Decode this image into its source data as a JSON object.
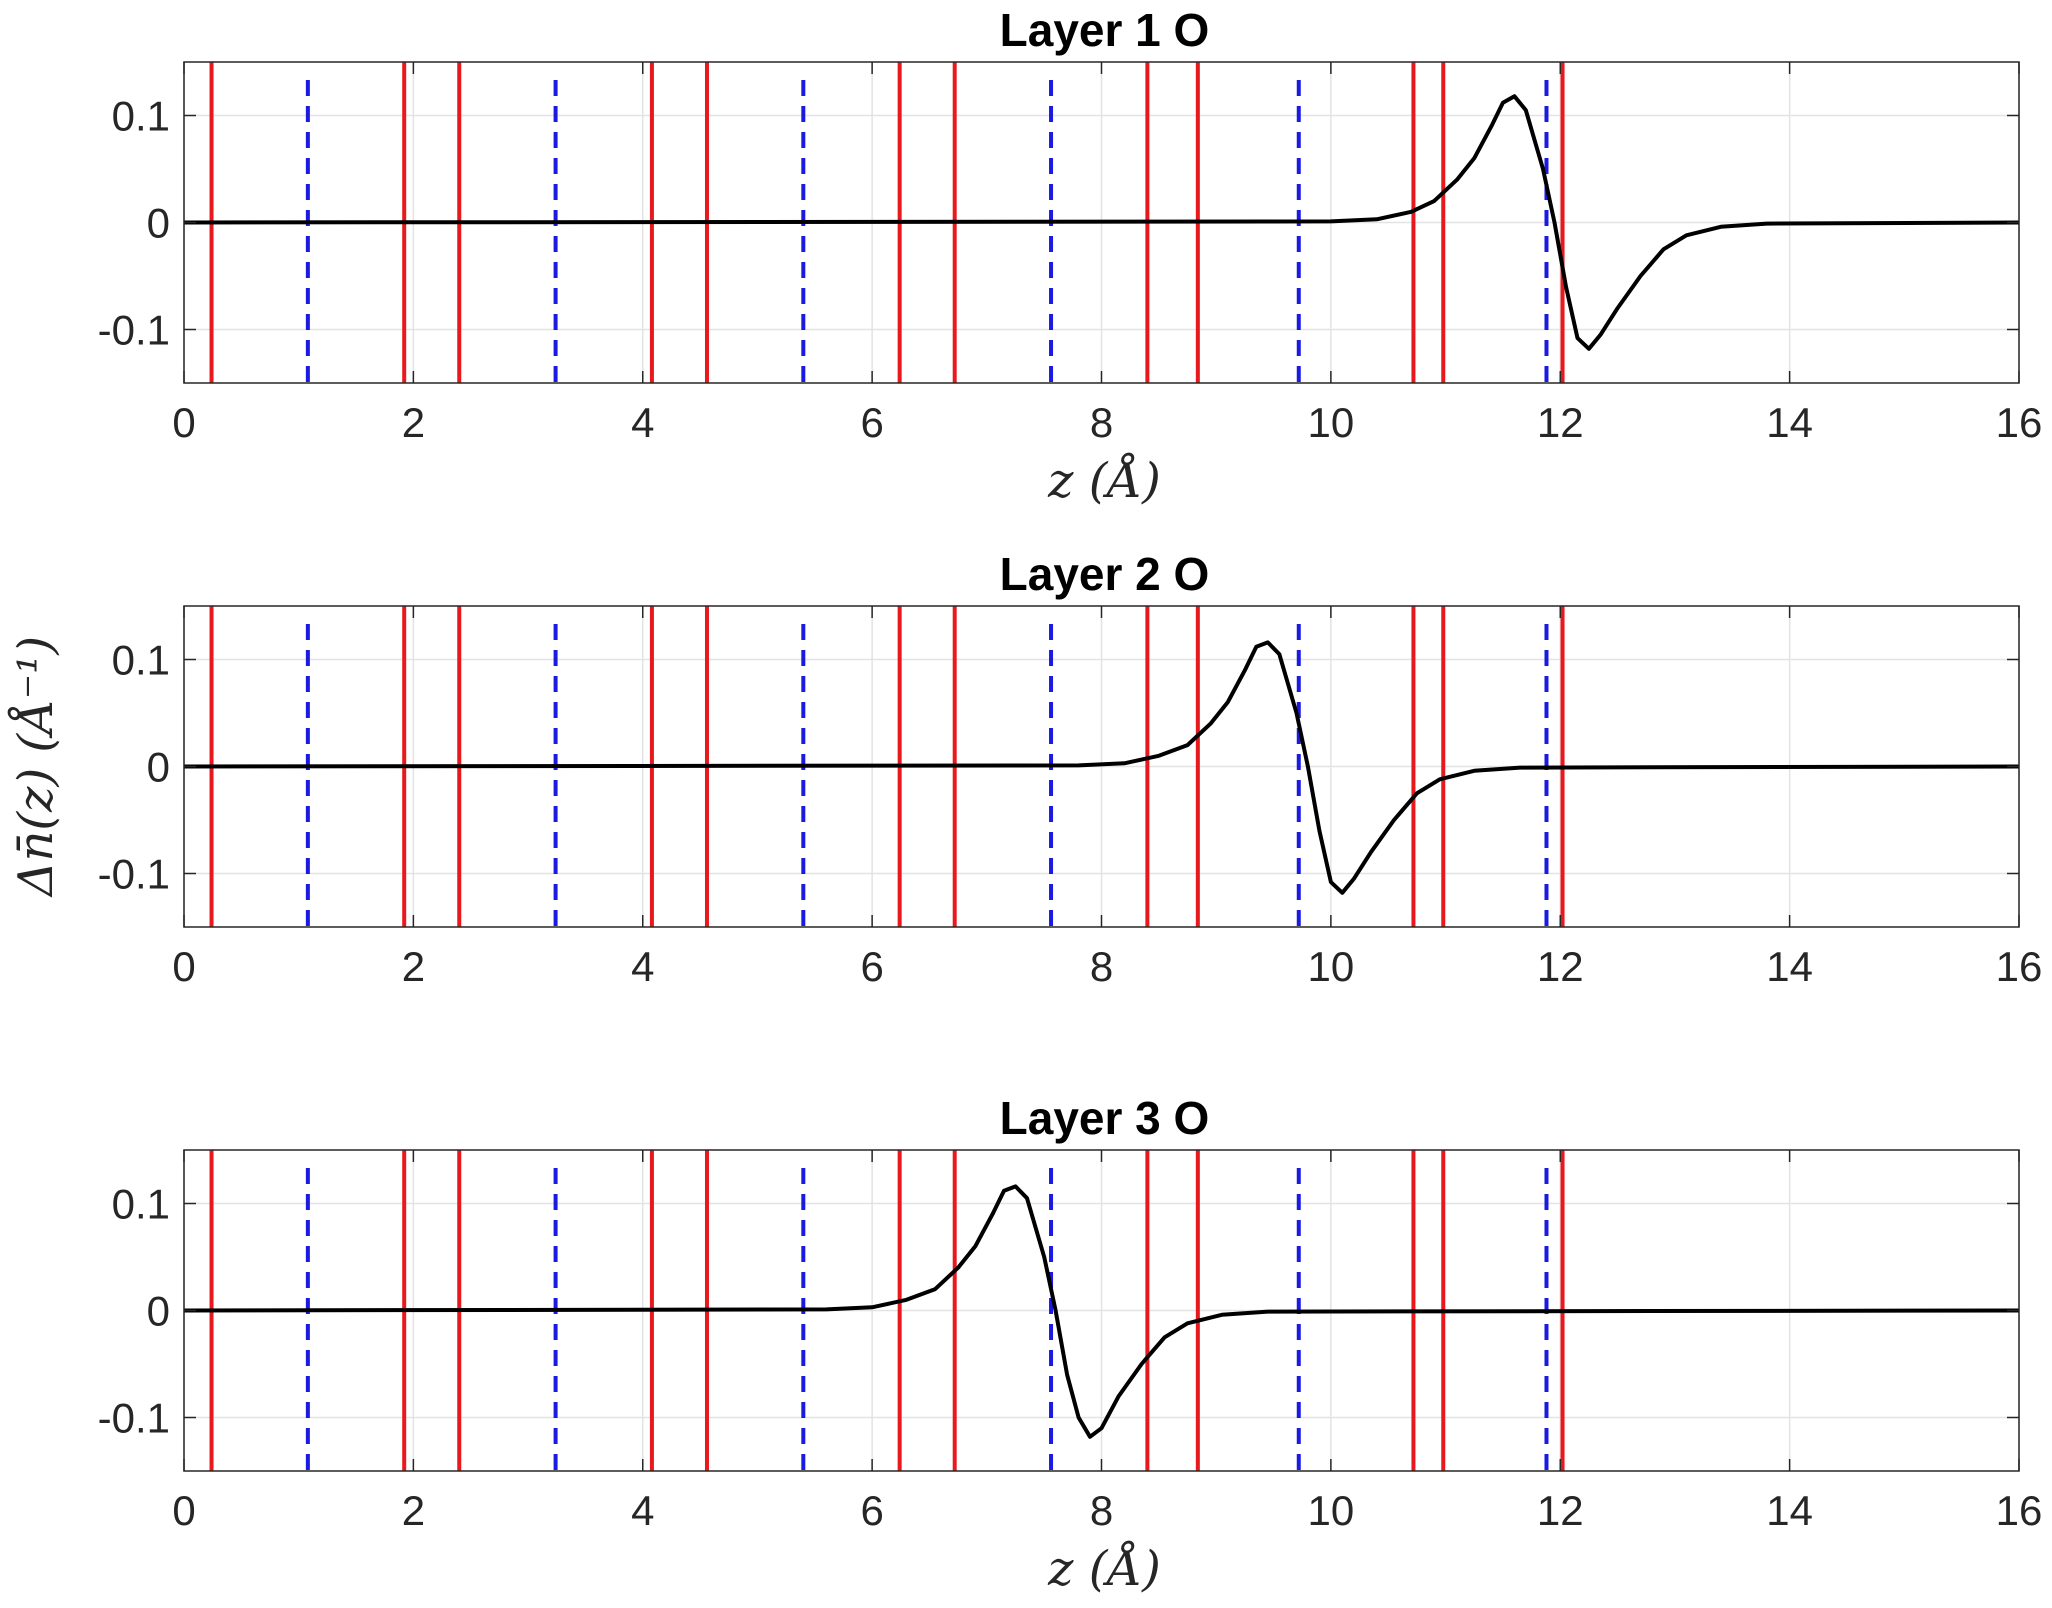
{
  "figure": {
    "ylabel": "Δn̄(z) (Å⁻¹)",
    "colors": {
      "solid_line": "#e8191c",
      "dashed_line": "#1a1ae0",
      "curve": "#000000"
    }
  },
  "chart_data": [
    {
      "type": "line",
      "title": "Layer 1 O",
      "xlabel": "z (Å)",
      "xlim": [
        0,
        16
      ],
      "ylim": [
        -0.15,
        0.15
      ],
      "xticks": [
        "0",
        "2",
        "4",
        "6",
        "8",
        "10",
        "12",
        "14",
        "16"
      ],
      "yticks": [
        "-0.1",
        "0",
        "0.1"
      ],
      "grid": true,
      "solid_lines_x": [
        0.24,
        1.92,
        2.4,
        4.08,
        4.56,
        6.24,
        6.72,
        8.4,
        8.84,
        10.72,
        10.98,
        12.02
      ],
      "dashed_lines_x": [
        1.08,
        3.24,
        5.4,
        7.56,
        9.72,
        11.88
      ],
      "series": [
        {
          "x": [
            0,
            10.0,
            10.4,
            10.7,
            10.9,
            11.1,
            11.25,
            11.4,
            11.5,
            11.6,
            11.7,
            11.85,
            11.95,
            12.05,
            12.15,
            12.25,
            12.35,
            12.5,
            12.7,
            12.9,
            13.1,
            13.4,
            13.8,
            16
          ],
          "y": [
            0,
            0.001,
            0.003,
            0.01,
            0.02,
            0.04,
            0.06,
            0.09,
            0.112,
            0.118,
            0.105,
            0.05,
            0.0,
            -0.06,
            -0.108,
            -0.118,
            -0.105,
            -0.08,
            -0.05,
            -0.025,
            -0.012,
            -0.004,
            -0.001,
            0
          ]
        }
      ]
    },
    {
      "type": "line",
      "title": "Layer 2 O",
      "xlabel": "",
      "xlim": [
        0,
        16
      ],
      "ylim": [
        -0.15,
        0.15
      ],
      "xticks": [
        "0",
        "2",
        "4",
        "6",
        "8",
        "10",
        "12",
        "14",
        "16"
      ],
      "yticks": [
        "-0.1",
        "0",
        "0.1"
      ],
      "grid": true,
      "solid_lines_x": [
        0.24,
        1.92,
        2.4,
        4.08,
        4.56,
        6.24,
        6.72,
        8.4,
        8.84,
        10.72,
        10.98,
        12.02
      ],
      "dashed_lines_x": [
        1.08,
        3.24,
        5.4,
        7.56,
        9.72,
        11.88
      ],
      "series": [
        {
          "x": [
            0,
            7.8,
            8.2,
            8.5,
            8.75,
            8.95,
            9.1,
            9.25,
            9.35,
            9.45,
            9.55,
            9.7,
            9.8,
            9.9,
            10.0,
            10.1,
            10.2,
            10.35,
            10.55,
            10.75,
            10.95,
            11.25,
            11.65,
            16
          ],
          "y": [
            0,
            0.001,
            0.003,
            0.01,
            0.02,
            0.04,
            0.06,
            0.09,
            0.112,
            0.116,
            0.105,
            0.05,
            0.0,
            -0.06,
            -0.108,
            -0.118,
            -0.105,
            -0.08,
            -0.05,
            -0.025,
            -0.012,
            -0.004,
            -0.001,
            0
          ]
        }
      ]
    },
    {
      "type": "line",
      "title": "Layer 3 O",
      "xlabel": "z (Å)",
      "xlim": [
        0,
        16
      ],
      "ylim": [
        -0.15,
        0.15
      ],
      "xticks": [
        "0",
        "2",
        "4",
        "6",
        "8",
        "10",
        "12",
        "14",
        "16"
      ],
      "yticks": [
        "-0.1",
        "0",
        "0.1"
      ],
      "grid": true,
      "solid_lines_x": [
        0.24,
        1.92,
        2.4,
        4.08,
        4.56,
        6.24,
        6.72,
        8.4,
        8.84,
        10.72,
        10.98,
        12.02
      ],
      "dashed_lines_x": [
        1.08,
        3.24,
        5.4,
        7.56,
        9.72,
        11.88
      ],
      "series": [
        {
          "x": [
            0,
            5.6,
            6.0,
            6.3,
            6.55,
            6.75,
            6.9,
            7.05,
            7.15,
            7.25,
            7.35,
            7.5,
            7.6,
            7.7,
            7.8,
            7.9,
            8.0,
            8.15,
            8.35,
            8.55,
            8.75,
            9.05,
            9.45,
            16
          ],
          "y": [
            0,
            0.001,
            0.003,
            0.01,
            0.02,
            0.04,
            0.06,
            0.09,
            0.112,
            0.116,
            0.105,
            0.05,
            0.0,
            -0.06,
            -0.1,
            -0.118,
            -0.11,
            -0.08,
            -0.05,
            -0.025,
            -0.012,
            -0.004,
            -0.001,
            0
          ]
        }
      ]
    }
  ]
}
